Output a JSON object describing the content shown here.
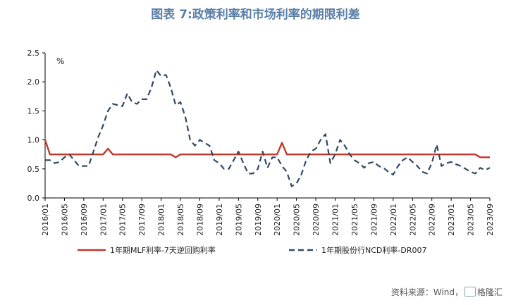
{
  "title": "图表 7:政策利率和市场利率的期限利差",
  "unit": "%",
  "source_label": "资料来源：Wind，",
  "source_tail": "格隆汇",
  "chart_data": {
    "type": "line",
    "ylim": [
      0.0,
      2.5
    ],
    "yticks": [
      "0.0",
      "0.5",
      "1.0",
      "1.5",
      "2.0",
      "2.5"
    ],
    "ytick_values": [
      0.0,
      0.5,
      1.0,
      1.5,
      2.0,
      2.5
    ],
    "x_start": "2016/01",
    "x_end": "2023/09",
    "xticks": [
      "2016/01",
      "2016/05",
      "2016/09",
      "2017/01",
      "2017/05",
      "2017/09",
      "2018/01",
      "2018/05",
      "2018/09",
      "2019/01",
      "2019/05",
      "2019/09",
      "2020/01",
      "2020/05",
      "2020/09",
      "2021/01",
      "2021/05",
      "2021/09",
      "2022/01",
      "2022/05",
      "2022/09",
      "2023/01",
      "2023/05",
      "2023/09"
    ],
    "legend_position": "bottom",
    "series": [
      {
        "name": "1年期MLF利率-7天逆回购利率",
        "color": "#c0392b",
        "style": "solid",
        "points": [
          [
            "2016/01",
            1.0
          ],
          [
            "2016/02",
            0.75
          ],
          [
            "2016/06",
            0.75
          ],
          [
            "2016/10",
            0.75
          ],
          [
            "2017/01",
            0.75
          ],
          [
            "2017/02",
            0.85
          ],
          [
            "2017/03",
            0.75
          ],
          [
            "2017/06",
            0.75
          ],
          [
            "2017/10",
            0.75
          ],
          [
            "2018/01",
            0.75
          ],
          [
            "2018/03",
            0.75
          ],
          [
            "2018/04",
            0.7
          ],
          [
            "2018/05",
            0.75
          ],
          [
            "2018/09",
            0.75
          ],
          [
            "2019/01",
            0.75
          ],
          [
            "2019/06",
            0.75
          ],
          [
            "2019/11",
            0.75
          ],
          [
            "2020/01",
            0.75
          ],
          [
            "2020/02",
            0.95
          ],
          [
            "2020/03",
            0.75
          ],
          [
            "2020/06",
            0.75
          ],
          [
            "2020/10",
            0.75
          ],
          [
            "2021/03",
            0.75
          ],
          [
            "2021/09",
            0.75
          ],
          [
            "2022/03",
            0.75
          ],
          [
            "2022/08",
            0.75
          ],
          [
            "2023/01",
            0.75
          ],
          [
            "2023/06",
            0.75
          ],
          [
            "2023/07",
            0.7
          ],
          [
            "2023/09",
            0.7
          ]
        ]
      },
      {
        "name": "1年期股份行NCD利率-DR007",
        "color": "#2f4a66",
        "style": "dashed",
        "points": [
          [
            "2016/01",
            0.65
          ],
          [
            "2016/02",
            0.65
          ],
          [
            "2016/03",
            0.6
          ],
          [
            "2016/04",
            0.62
          ],
          [
            "2016/05",
            0.7
          ],
          [
            "2016/06",
            0.75
          ],
          [
            "2016/07",
            0.65
          ],
          [
            "2016/08",
            0.55
          ],
          [
            "2016/09",
            0.55
          ],
          [
            "2016/10",
            0.55
          ],
          [
            "2016/11",
            0.8
          ],
          [
            "2016/12",
            1.05
          ],
          [
            "2017/01",
            1.25
          ],
          [
            "2017/02",
            1.5
          ],
          [
            "2017/03",
            1.62
          ],
          [
            "2017/04",
            1.6
          ],
          [
            "2017/05",
            1.58
          ],
          [
            "2017/06",
            1.8
          ],
          [
            "2017/07",
            1.65
          ],
          [
            "2017/08",
            1.62
          ],
          [
            "2017/09",
            1.7
          ],
          [
            "2017/10",
            1.7
          ],
          [
            "2017/11",
            1.9
          ],
          [
            "2017/12",
            2.2
          ],
          [
            "2018/01",
            2.1
          ],
          [
            "2018/02",
            2.12
          ],
          [
            "2018/03",
            1.9
          ],
          [
            "2018/04",
            1.6
          ],
          [
            "2018/05",
            1.65
          ],
          [
            "2018/06",
            1.4
          ],
          [
            "2018/07",
            1.0
          ],
          [
            "2018/08",
            0.9
          ],
          [
            "2018/09",
            1.0
          ],
          [
            "2018/10",
            0.95
          ],
          [
            "2018/11",
            0.9
          ],
          [
            "2018/12",
            0.65
          ],
          [
            "2019/01",
            0.6
          ],
          [
            "2019/02",
            0.5
          ],
          [
            "2019/03",
            0.5
          ],
          [
            "2019/04",
            0.65
          ],
          [
            "2019/05",
            0.8
          ],
          [
            "2019/06",
            0.6
          ],
          [
            "2019/07",
            0.42
          ],
          [
            "2019/08",
            0.42
          ],
          [
            "2019/09",
            0.5
          ],
          [
            "2019/10",
            0.8
          ],
          [
            "2019/11",
            0.52
          ],
          [
            "2019/12",
            0.7
          ],
          [
            "2020/01",
            0.7
          ],
          [
            "2020/02",
            0.55
          ],
          [
            "2020/03",
            0.45
          ],
          [
            "2020/04",
            0.2
          ],
          [
            "2020/05",
            0.25
          ],
          [
            "2020/06",
            0.4
          ],
          [
            "2020/07",
            0.65
          ],
          [
            "2020/08",
            0.8
          ],
          [
            "2020/09",
            0.85
          ],
          [
            "2020/10",
            1.0
          ],
          [
            "2020/11",
            1.1
          ],
          [
            "2020/12",
            0.6
          ],
          [
            "2021/01",
            0.75
          ],
          [
            "2021/02",
            1.0
          ],
          [
            "2021/03",
            0.9
          ],
          [
            "2021/04",
            0.75
          ],
          [
            "2021/05",
            0.65
          ],
          [
            "2021/06",
            0.6
          ],
          [
            "2021/07",
            0.52
          ],
          [
            "2021/08",
            0.6
          ],
          [
            "2021/09",
            0.62
          ],
          [
            "2021/10",
            0.55
          ],
          [
            "2021/11",
            0.52
          ],
          [
            "2021/12",
            0.45
          ],
          [
            "2022/01",
            0.4
          ],
          [
            "2022/02",
            0.55
          ],
          [
            "2022/03",
            0.65
          ],
          [
            "2022/04",
            0.7
          ],
          [
            "2022/05",
            0.62
          ],
          [
            "2022/06",
            0.55
          ],
          [
            "2022/07",
            0.45
          ],
          [
            "2022/08",
            0.42
          ],
          [
            "2022/09",
            0.6
          ],
          [
            "2022/10",
            0.92
          ],
          [
            "2022/11",
            0.55
          ],
          [
            "2022/12",
            0.6
          ],
          [
            "2023/01",
            0.62
          ],
          [
            "2023/02",
            0.58
          ],
          [
            "2023/03",
            0.55
          ],
          [
            "2023/04",
            0.5
          ],
          [
            "2023/05",
            0.45
          ],
          [
            "2023/06",
            0.42
          ],
          [
            "2023/07",
            0.52
          ],
          [
            "2023/08",
            0.48
          ],
          [
            "2023/09",
            0.52
          ]
        ]
      }
    ]
  }
}
